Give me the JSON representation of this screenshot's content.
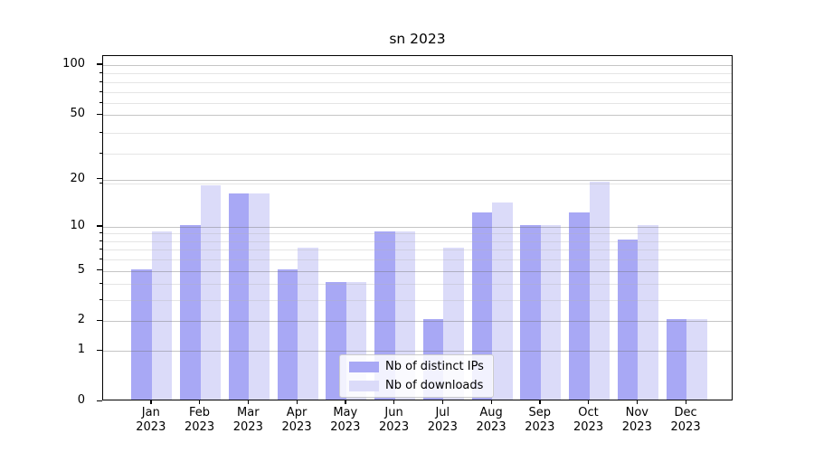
{
  "title": "sn 2023",
  "chart_data": {
    "type": "bar",
    "title": "sn 2023",
    "scale": "log10(1+x)",
    "categories": [
      "Jan",
      "Feb",
      "Mar",
      "Apr",
      "May",
      "Jun",
      "Jul",
      "Aug",
      "Sep",
      "Oct",
      "Nov",
      "Dec"
    ],
    "category_year": "2023",
    "series": [
      {
        "name": "Nb of distinct IPs",
        "color": "#a8a8f5",
        "values": [
          5,
          10,
          16,
          5,
          4,
          9,
          2,
          12,
          10,
          12,
          8,
          2
        ]
      },
      {
        "name": "Nb of downloads",
        "color": "#dbdbf9",
        "values": [
          9,
          18,
          16,
          7,
          4,
          9,
          7,
          14,
          10,
          19,
          10,
          2
        ]
      }
    ],
    "ylabel": "",
    "xlabel": "",
    "y_ticks": [
      0,
      1,
      2,
      5,
      10,
      20,
      50,
      100
    ],
    "y_minor_ticks": [
      3,
      4,
      6,
      7,
      8,
      9,
      19,
      29,
      39,
      59,
      69,
      79,
      89
    ],
    "ylim": [
      0,
      113.3
    ],
    "grid": "major+minor",
    "legend_position": "lower center"
  },
  "colors": {
    "background": "#ffffff",
    "axis": "#000000",
    "text": "#000000",
    "bar_ips": "#a8a8f5",
    "bar_downloads": "#dbdbf9",
    "grid_major": "rgba(110,110,110,0.40)",
    "grid_minor": "rgba(180,180,180,0.35)",
    "legend_border": "#cccccc"
  }
}
